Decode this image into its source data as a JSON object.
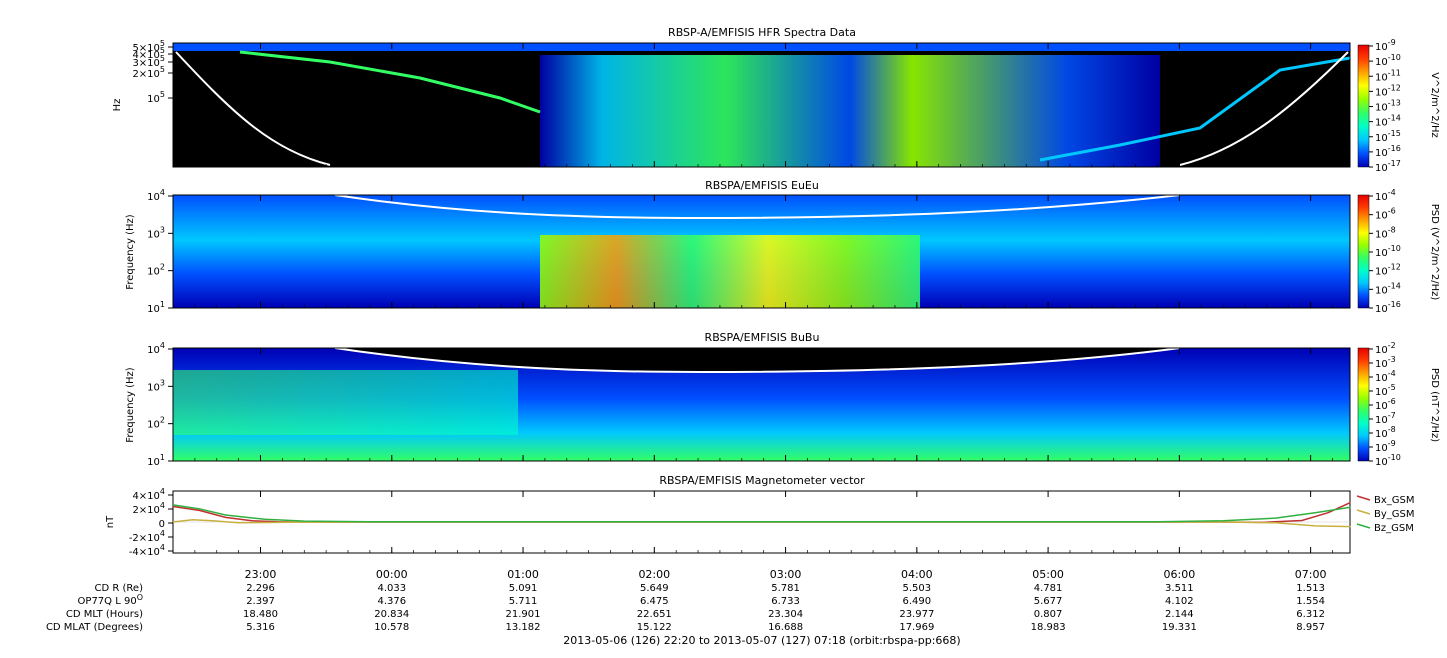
{
  "colors": {
    "background": "#ffffff",
    "spectrogram_background": "#000000",
    "colormap": [
      "#0000b4",
      "#0050ff",
      "#00c8ff",
      "#00ffc8",
      "#32ff64",
      "#96ff00",
      "#ffff00",
      "#ffa000",
      "#ff3c00",
      "#e60000"
    ],
    "overlay_line": "#ffffff",
    "bx": "#c03030",
    "by": "#c8b040",
    "bz": "#30b040"
  },
  "chart_data": [
    {
      "type": "heatmap",
      "title": "RBSP-A/EMFISIS  HFR Spectra Data",
      "ylabel": "Hz",
      "y_ticks": [
        "5×10^5",
        "4×10^5",
        "3×10^5",
        "2×10^5",
        "10^5"
      ],
      "colorbar_label": "V^2/m^2/Hz",
      "colorbar_ticks": [
        "10^-9",
        "10^-10",
        "10^-11",
        "10^-12",
        "10^-13",
        "10^-14",
        "10^-15",
        "10^-16",
        "10^-17"
      ],
      "overlay": {
        "x": [
          "22:20",
          "23:20",
          "01:00",
          "02:00",
          "03:00",
          "04:00",
          "05:00",
          "06:20",
          "07:18"
        ],
        "y_frac": [
          0.9,
          0.25,
          0.1,
          0.1,
          0.1,
          0.1,
          0.1,
          0.25,
          0.9
        ]
      }
    },
    {
      "type": "heatmap",
      "title": "RBSPA/EMFISIS  EuEu",
      "ylabel": "Frequency (Hz)",
      "y_ticks": [
        "10^4",
        "10^3",
        "10^2",
        "10^1"
      ],
      "ylim": [
        10,
        10000
      ],
      "colorbar_label": "PSD (V^2/m^2/Hz)",
      "colorbar_ticks": [
        "10^-4",
        "10^-6",
        "10^-8",
        "10^-10",
        "10^-12",
        "10^-14",
        "10^-16"
      ],
      "overlay": {
        "x": [
          "23:40",
          "00:30",
          "01:30",
          "02:30",
          "03:30",
          "04:30",
          "05:30",
          "06:00"
        ],
        "y": [
          10000,
          5000,
          3000,
          2500,
          2600,
          3500,
          6000,
          10000
        ]
      }
    },
    {
      "type": "heatmap",
      "title": "RBSPA/EMFISIS  BuBu",
      "ylabel": "Frequency (Hz)",
      "y_ticks": [
        "10^4",
        "10^3",
        "10^2",
        "10^1"
      ],
      "ylim": [
        10,
        10000
      ],
      "colorbar_label": "PSD (nT^2/Hz)",
      "colorbar_ticks": [
        "10^-2",
        "10^-3",
        "10^-4",
        "10^-5",
        "10^-6",
        "10^-7",
        "10^-8",
        "10^-9",
        "10^-10"
      ],
      "overlay": {
        "x": [
          "23:40",
          "00:30",
          "01:30",
          "02:30",
          "03:30",
          "04:30",
          "05:30",
          "06:00"
        ],
        "y": [
          10000,
          5000,
          3000,
          2500,
          2600,
          3500,
          6000,
          10000
        ]
      }
    },
    {
      "type": "line",
      "title": "RBSPA/EMFISIS  Magnetometer vector",
      "ylabel": "nT",
      "y_ticks": [
        "4×10^4",
        "2×10^4",
        "0",
        "-2×10^4",
        "-4×10^4"
      ],
      "ylim": [
        -40000,
        40000
      ],
      "series": [
        {
          "name": "Bx_GSM",
          "x_hours": [
            0,
            0.2,
            0.4,
            0.6,
            0.8,
            1.0,
            8.0,
            8.3,
            8.6,
            8.8,
            8.97
          ],
          "values": [
            20000,
            15000,
            6000,
            1500,
            300,
            0,
            0,
            -500,
            2000,
            12000,
            25000
          ]
        },
        {
          "name": "By_GSM",
          "x_hours": [
            0,
            0.15,
            0.3,
            0.5,
            0.8,
            1.0,
            8.0,
            8.4,
            8.7,
            8.97
          ],
          "values": [
            0,
            3000,
            1500,
            -1000,
            -500,
            0,
            0,
            -1000,
            -5000,
            -6000
          ]
        },
        {
          "name": "Bz_GSM",
          "x_hours": [
            0,
            0.2,
            0.4,
            0.7,
            1.0,
            1.5,
            7.5,
            8.0,
            8.4,
            8.7,
            8.97
          ],
          "values": [
            22000,
            17000,
            9000,
            3500,
            1200,
            300,
            300,
            1500,
            5000,
            12000,
            19000
          ]
        }
      ]
    }
  ],
  "time_axis": {
    "start_hours": 22.3333,
    "end_hours": 31.3,
    "ticks": [
      "23:00",
      "00:00",
      "01:00",
      "02:00",
      "03:00",
      "04:00",
      "05:00",
      "06:00",
      "07:00"
    ]
  },
  "ephemeris": {
    "rows": [
      {
        "label": "CD R (Re)",
        "values": [
          "2.296",
          "4.033",
          "5.091",
          "5.649",
          "5.781",
          "5.503",
          "4.781",
          "3.511",
          "1.513"
        ]
      },
      {
        "label": "OP77Q L 90",
        "label_sup": "O",
        "values": [
          "2.397",
          "4.376",
          "5.711",
          "6.475",
          "6.733",
          "6.490",
          "5.677",
          "4.102",
          "1.554"
        ]
      },
      {
        "label": "CD MLT (Hours)",
        "values": [
          "18.480",
          "20.834",
          "21.901",
          "22.651",
          "23.304",
          "23.977",
          "0.807",
          "2.144",
          "6.312"
        ]
      },
      {
        "label": "CD MLAT (Degrees)",
        "values": [
          "5.316",
          "10.578",
          "13.182",
          "15.122",
          "16.688",
          "17.969",
          "18.983",
          "19.331",
          "8.957"
        ]
      }
    ]
  },
  "footer": "2013-05-06 (126) 22:20 to 2013-05-07 (127) 07:18 (orbit:rbspa-pp:668)"
}
